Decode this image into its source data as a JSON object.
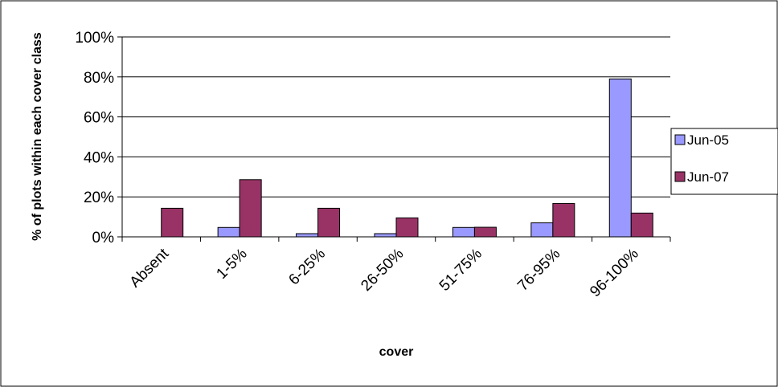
{
  "chart_data": {
    "type": "bar",
    "categories": [
      "Absent",
      "1-5%",
      "6-25%",
      "26-50%",
      "51-75%",
      "76-95%",
      "96-100%"
    ],
    "series": [
      {
        "name": "Jun-05",
        "values": [
          0,
          4.7,
          1.6,
          1.6,
          4.7,
          7.0,
          79.0
        ],
        "color": "#9999ff"
      },
      {
        "name": "Jun-07",
        "values": [
          14.3,
          28.6,
          14.3,
          9.5,
          4.8,
          16.7,
          11.9
        ],
        "color": "#993366"
      }
    ],
    "title": "",
    "xlabel": "cover",
    "ylabel": "% of plots within each cover class",
    "ylim": [
      0,
      100
    ],
    "yticks": [
      "0%",
      "20%",
      "40%",
      "60%",
      "80%",
      "100%"
    ],
    "grid": true,
    "legend_position": "right"
  }
}
